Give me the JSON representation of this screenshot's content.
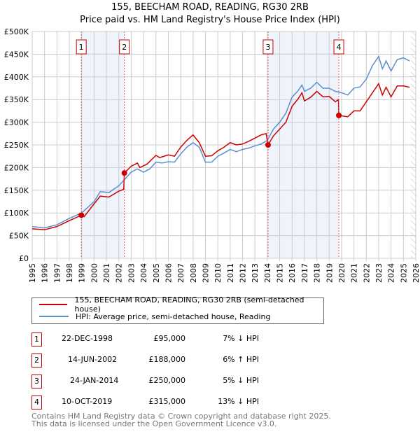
{
  "chart_data": {
    "type": "line",
    "title": "155, BEECHAM ROAD, READING, RG30 2RB",
    "subtitle": "Price paid vs. HM Land Registry's House Price Index (HPI)",
    "xlim": [
      1995,
      2026
    ],
    "ylim": [
      0,
      500000
    ],
    "ytick_labels": [
      "£0",
      "£50K",
      "£100K",
      "£150K",
      "£200K",
      "£250K",
      "£300K",
      "£350K",
      "£400K",
      "£450K",
      "£500K"
    ],
    "xtick_labels": [
      "1995",
      "1996",
      "1997",
      "1998",
      "1999",
      "2000",
      "2001",
      "2002",
      "2003",
      "2004",
      "2005",
      "2006",
      "2007",
      "2008",
      "2009",
      "2010",
      "2011",
      "2012",
      "2013",
      "2014",
      "2015",
      "2016",
      "2017",
      "2018",
      "2019",
      "2020",
      "2021",
      "2022",
      "2023",
      "2024",
      "2025",
      "2026"
    ],
    "grid": true,
    "series": [
      {
        "name": "155, BEECHAM ROAD, READING, RG30 2RB (semi-detached house)",
        "color": "#cc0000",
        "x": [
          1995,
          1996,
          1997,
          1998,
          1998.97,
          1999.2,
          2000,
          2000.5,
          2001.2,
          2002,
          2002.4,
          2002.45,
          2003,
          2003.5,
          2003.7,
          2004.3,
          2005,
          2005.3,
          2006,
          2006.5,
          2007,
          2007.5,
          2008,
          2008.5,
          2009,
          2009.5,
          2010,
          2010.5,
          2011,
          2011.5,
          2012,
          2012.5,
          2013,
          2013.5,
          2013.9,
          2014.06,
          2014.5,
          2015,
          2015.5,
          2016,
          2016.5,
          2016.8,
          2017,
          2017.5,
          2018,
          2018.5,
          2019,
          2019.5,
          2019.75,
          2019.78,
          2020.5,
          2021,
          2021.5,
          2022,
          2022.5,
          2023,
          2023.3,
          2023.6,
          2024,
          2024.5,
          2025,
          2025.5
        ],
        "y": [
          65,
          63,
          70,
          83,
          95,
          92,
          120,
          137,
          135,
          148,
          152,
          188,
          203,
          210,
          200,
          208,
          227,
          222,
          228,
          225,
          245,
          260,
          272,
          255,
          225,
          226,
          237,
          245,
          255,
          250,
          252,
          258,
          265,
          272,
          275,
          250,
          270,
          285,
          300,
          335,
          352,
          365,
          347,
          355,
          368,
          356,
          357,
          345,
          350,
          315,
          312,
          325,
          325,
          345,
          365,
          385,
          360,
          377,
          356,
          380,
          380,
          377
        ]
      },
      {
        "name": "HPI: Average price, semi-detached house, Reading",
        "color": "#5b8fd0",
        "x": [
          1995,
          1996,
          1997,
          1998,
          1999,
          2000,
          2000.5,
          2001.2,
          2002,
          2002.5,
          2003,
          2003.5,
          2004,
          2004.5,
          2005,
          2005.5,
          2006,
          2006.5,
          2007,
          2007.5,
          2008,
          2008.5,
          2009,
          2009.5,
          2010,
          2010.5,
          2011,
          2011.5,
          2012,
          2012.5,
          2013,
          2013.5,
          2014,
          2014.5,
          2015,
          2015.5,
          2016,
          2016.5,
          2016.8,
          2017,
          2017.5,
          2018,
          2018.5,
          2019,
          2019.5,
          2020,
          2020.5,
          2021,
          2021.5,
          2022,
          2022.5,
          2023,
          2023.3,
          2023.6,
          2024,
          2024.5,
          2025,
          2025.5
        ],
        "y": [
          70,
          67,
          74,
          88,
          100,
          125,
          147,
          145,
          160,
          175,
          190,
          197,
          190,
          197,
          212,
          210,
          213,
          212,
          230,
          245,
          255,
          245,
          212,
          212,
          225,
          232,
          240,
          235,
          240,
          243,
          248,
          252,
          260,
          285,
          300,
          320,
          355,
          370,
          382,
          368,
          375,
          388,
          375,
          375,
          368,
          365,
          360,
          375,
          378,
          395,
          425,
          445,
          418,
          435,
          413,
          438,
          442,
          435
        ]
      }
    ],
    "y_unit_multiplier": 1000,
    "sales": [
      {
        "n": "1",
        "x": 1998.97,
        "y": 95,
        "date": "22-DEC-1998",
        "price": "£95,000",
        "hpi": "7% ↓ HPI"
      },
      {
        "n": "2",
        "x": 2002.45,
        "y": 188,
        "date": "14-JUN-2002",
        "price": "£188,000",
        "hpi": "6% ↑ HPI"
      },
      {
        "n": "3",
        "x": 2014.06,
        "y": 250,
        "date": "24-JAN-2014",
        "price": "£250,000",
        "hpi": "5% ↓ HPI"
      },
      {
        "n": "4",
        "x": 2019.78,
        "y": 315,
        "date": "10-OCT-2019",
        "price": "£315,000",
        "hpi": "13% ↓ HPI"
      }
    ],
    "shaded_ranges": [
      [
        1998.97,
        2002.45
      ],
      [
        2014.06,
        2019.78
      ]
    ],
    "forecast_from": 2025.6,
    "legend_position": "bottom"
  },
  "footer": {
    "line1": "Contains HM Land Registry data © Crown copyright and database right 2025.",
    "line2": "This data is licensed under the Open Government Licence v3.0."
  }
}
